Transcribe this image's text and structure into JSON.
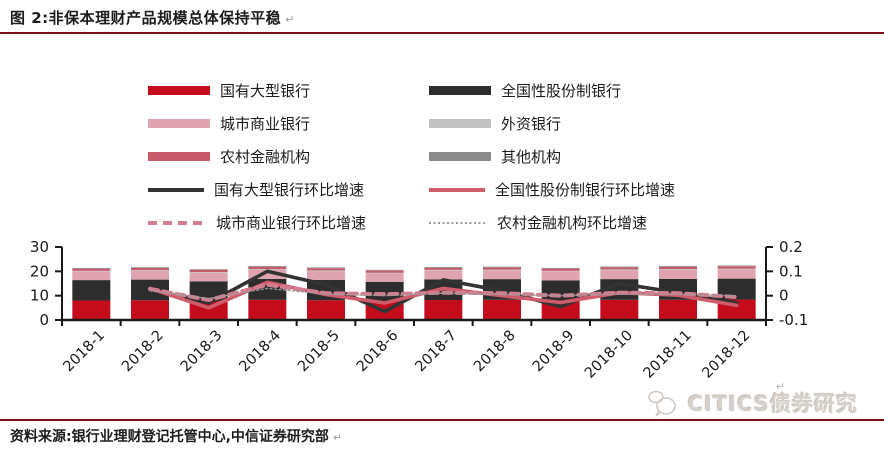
{
  "title": "图 2:非保本理财产品规模总体保持平稳",
  "paragraph_mark": "↵",
  "source_note": "资料来源:银行业理财登记托管中心,中信证券研究部",
  "watermark": {
    "text": "CITICS债券研究",
    "logo": "citics-bubble-logo"
  },
  "colors": {
    "rule_dark_red": "#7a1014",
    "axis": "#1a1a1a",
    "bar_state_owned": "#c40c1c",
    "bar_joint_stock": "#2d2d2d",
    "bar_city_commercial": "#e0a4b0",
    "bar_foreign": "#c2c2c2",
    "bar_rural": "#c75b6b",
    "bar_other": "#8c8c8c",
    "line_state_owned": "#333333",
    "line_joint_stock": "#d05c6b",
    "line_city_commercial": "#d27e90",
    "line_rural": "#9a9a9a"
  },
  "legend": {
    "items": [
      {
        "label": "国有大型银行",
        "swatch": "bar",
        "color": "#c40c1c"
      },
      {
        "label": "全国性股份制银行",
        "swatch": "bar",
        "color": "#2d2d2d"
      },
      {
        "label": "城市商业银行",
        "swatch": "bar",
        "color": "#e0a4b0"
      },
      {
        "label": "外资银行",
        "swatch": "bar",
        "color": "#c2c2c2"
      },
      {
        "label": "农村金融机构",
        "swatch": "bar",
        "color": "#c75b6b"
      },
      {
        "label": "其他机构",
        "swatch": "bar",
        "color": "#8c8c8c"
      },
      {
        "label": "国有大型银行环比增速",
        "swatch": "line",
        "color": "#333333"
      },
      {
        "label": "全国性股份制银行环比增速",
        "swatch": "line",
        "color": "#d05c6b"
      },
      {
        "label": "城市商业银行环比增速",
        "swatch": "dashed",
        "color": "#d27e90"
      },
      {
        "label": "农村金融机构环比增速",
        "swatch": "dotted",
        "color": "#9a9a9a"
      }
    ]
  },
  "chart_data": {
    "type": "bar",
    "subtype": "stacked-bars-with-overlay-lines",
    "title": "",
    "xlabel": "",
    "ylabel": "",
    "grid": false,
    "legend_position": "top",
    "categories": [
      "2018-1",
      "2018-2",
      "2018-3",
      "2018-4",
      "2018-5",
      "2018-6",
      "2018-7",
      "2018-8",
      "2018-9",
      "2018-10",
      "2018-11",
      "2018-12"
    ],
    "left_axis": {
      "min": 0,
      "max": 30,
      "tick_labels": [
        "0",
        "10",
        "20",
        "30"
      ],
      "tick_values": [
        0,
        10,
        20,
        30
      ]
    },
    "right_axis": {
      "min": -0.1,
      "max": 0.2,
      "tick_labels": [
        "-0.1",
        "0",
        "0.1",
        "0.2"
      ],
      "tick_values": [
        -0.1,
        0,
        0.1,
        0.2
      ]
    },
    "bar_series": [
      {
        "name": "国有大型银行",
        "color": "#c40c1c",
        "values": [
          8.0,
          8.1,
          7.8,
          8.3,
          8.1,
          7.7,
          8.2,
          8.3,
          8.0,
          8.3,
          8.3,
          8.4
        ]
      },
      {
        "name": "全国性股份制银行",
        "color": "#2d2d2d",
        "values": [
          8.4,
          8.5,
          8.1,
          8.6,
          8.4,
          8.0,
          8.5,
          8.5,
          8.3,
          8.5,
          8.6,
          8.6
        ]
      },
      {
        "name": "城市商业银行",
        "color": "#e0a4b0",
        "values": [
          3.5,
          3.6,
          3.5,
          3.7,
          3.6,
          3.4,
          3.6,
          3.6,
          3.6,
          3.7,
          3.7,
          3.8
        ]
      },
      {
        "name": "外资银行",
        "color": "#c2c2c2",
        "values": [
          0.3,
          0.3,
          0.3,
          0.3,
          0.3,
          0.3,
          0.3,
          0.3,
          0.3,
          0.3,
          0.3,
          0.3
        ]
      },
      {
        "name": "农村金融机构",
        "color": "#c75b6b",
        "values": [
          0.9,
          0.9,
          0.9,
          1.0,
          0.9,
          0.9,
          0.9,
          0.9,
          0.9,
          0.9,
          1.0,
          1.0
        ]
      },
      {
        "name": "其他机构",
        "color": "#8c8c8c",
        "values": [
          0.3,
          0.3,
          0.3,
          0.3,
          0.3,
          0.3,
          0.3,
          0.3,
          0.3,
          0.3,
          0.3,
          0.3
        ]
      }
    ],
    "line_series": [
      {
        "name": "国有大型银行环比增速",
        "color": "#333333",
        "style": "solid",
        "width": 3.6,
        "values": [
          null,
          0.025,
          -0.03,
          0.1,
          0.045,
          -0.065,
          0.065,
          0.02,
          -0.045,
          0.05,
          0.012,
          -0.03
        ]
      },
      {
        "name": "全国性股份制银行环比增速",
        "color": "#d05c6b",
        "style": "solid",
        "width": 3.6,
        "values": [
          null,
          0.03,
          -0.05,
          0.055,
          0.005,
          -0.03,
          0.03,
          0.0,
          -0.028,
          0.012,
          0.002,
          -0.04
        ]
      },
      {
        "name": "城市商业银行环比增速",
        "color": "#d27e90",
        "style": "dashed",
        "width": 4,
        "values": [
          null,
          0.028,
          -0.018,
          0.045,
          0.01,
          0.006,
          0.012,
          0.01,
          0.0,
          0.012,
          0.01,
          -0.006
        ]
      },
      {
        "name": "农村金融机构环比增速",
        "color": "#9a9a9a",
        "style": "dotted",
        "width": 1.3,
        "values": [
          null,
          0.02,
          -0.012,
          0.03,
          0.006,
          0.0,
          0.01,
          0.005,
          0.0,
          0.006,
          0.005,
          0.0
        ]
      }
    ]
  }
}
